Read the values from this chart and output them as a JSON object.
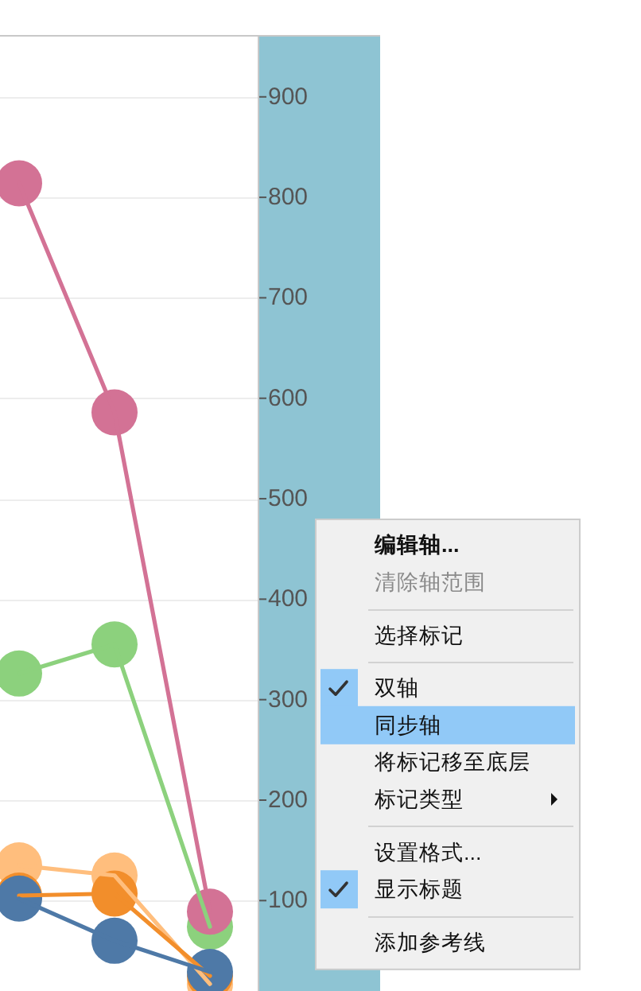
{
  "chart_data": {
    "type": "line",
    "categories": [
      null,
      null,
      null
    ],
    "series": [
      {
        "color": "#8cd17d",
        "values": [
          326,
          355,
          74
        ]
      },
      {
        "color": "#ffbe7d",
        "values": [
          135,
          125,
          17
        ]
      },
      {
        "color": "#f28e2b",
        "values": [
          105,
          107,
          25
        ]
      },
      {
        "color": "#4e79a7",
        "values": [
          102,
          60,
          29
        ]
      },
      {
        "color": "#d37295",
        "values": [
          814,
          586,
          89
        ]
      }
    ],
    "ylim": [
      10,
      960
    ],
    "yticks": [
      100,
      200,
      300,
      400,
      500,
      600,
      700,
      800,
      900
    ],
    "grid": true,
    "marker": "circle",
    "tick_labels": "y",
    "annotations": [
      "编辑轴...",
      "清除轴范围",
      "选择标记",
      "双轴",
      "同步轴",
      "将标记移至底层",
      "标记类型",
      "设置格式...",
      "显示标题",
      "添加参考线"
    ]
  }
}
